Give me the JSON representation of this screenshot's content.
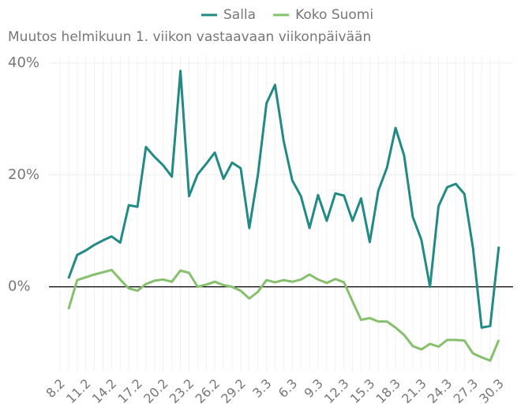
{
  "chart_data": {
    "type": "line",
    "subtitle": "Muutos helmikuun 1. viikon vastaavaan viikonpäivään",
    "categories": [
      "8.2",
      null,
      null,
      "11.2",
      null,
      null,
      "14.2",
      null,
      null,
      "17.2",
      null,
      null,
      "20.2",
      null,
      null,
      "23.2",
      null,
      null,
      "26.2",
      null,
      null,
      "29.2",
      null,
      null,
      "3.3",
      null,
      null,
      "6.3",
      null,
      null,
      "9.3",
      null,
      null,
      "12.3",
      null,
      null,
      "15.3",
      null,
      null,
      "18.3",
      null,
      null,
      "21.3",
      null,
      null,
      "24.3",
      null,
      null,
      "27.3",
      null,
      null,
      "30.3"
    ],
    "series": [
      {
        "name": "Salla",
        "color": "#218a84",
        "values": [
          null,
          1.5,
          5.7,
          6.5,
          7.5,
          8.3,
          9.0,
          7.9,
          14.6,
          14.3,
          25.0,
          23.2,
          21.7,
          19.7,
          38.6,
          16.2,
          20.1,
          22.0,
          24.0,
          19.3,
          22.2,
          21.2,
          10.5,
          20.0,
          32.8,
          36.1,
          26.0,
          19.0,
          16.2,
          10.5,
          16.4,
          11.8,
          16.7,
          16.3,
          11.8,
          15.8,
          8.0,
          17.2,
          21.3,
          28.4,
          23.5,
          12.5,
          8.4,
          0.0,
          14.4,
          17.8,
          18.4,
          16.6,
          7.0,
          -7.3,
          -7.0,
          7.2
        ]
      },
      {
        "name": "Koko Suomi",
        "color": "#86c06c",
        "values": [
          null,
          -4.0,
          1.2,
          1.7,
          2.2,
          2.6,
          3.0,
          1.3,
          -0.3,
          -0.7,
          0.5,
          1.1,
          1.3,
          0.9,
          2.9,
          2.5,
          0.0,
          0.4,
          0.9,
          0.3,
          0.0,
          -0.7,
          -2.1,
          -0.9,
          1.2,
          0.8,
          1.2,
          0.9,
          1.3,
          2.2,
          1.3,
          0.7,
          1.4,
          0.8,
          -2.6,
          -5.9,
          -5.6,
          -6.2,
          -6.2,
          -7.3,
          -8.6,
          -10.6,
          -11.2,
          -10.2,
          -10.7,
          -9.5,
          -9.5,
          -9.6,
          -11.9,
          -12.6,
          -13.2,
          -9.5
        ]
      }
    ],
    "ylim": [
      -15,
      41.4
    ],
    "yticks": [
      {
        "value": 0,
        "label": "0%"
      },
      {
        "value": 20,
        "label": "20%"
      },
      {
        "value": 40,
        "label": "40%"
      }
    ],
    "grid": true
  }
}
